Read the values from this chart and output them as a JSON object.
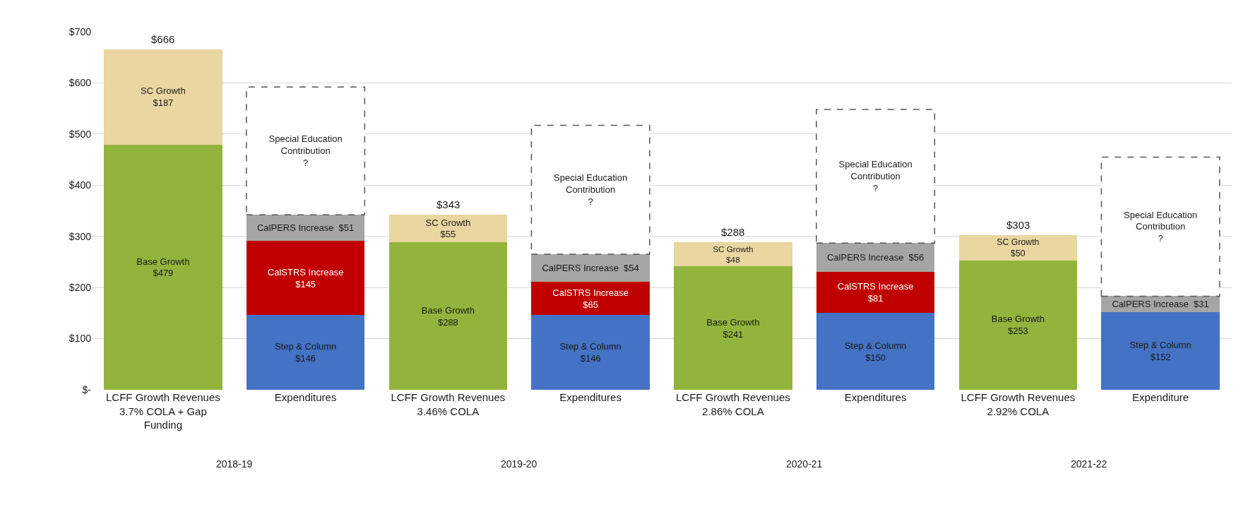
{
  "chart_data": {
    "type": "bar",
    "stacked": true,
    "categories": [
      "LCFF Growth Revenues\n3.7% COLA + Gap\nFunding",
      "Expenditures",
      "LCFF Growth Revenues\n3.46% COLA",
      "Expenditures",
      "LCFF Growth Revenues\n2.86% COLA",
      "Expenditures",
      "LCFF Growth Revenues\n2.92% COLA",
      "Expenditure"
    ],
    "series": [
      {
        "color": "#92b43c",
        "values": [
          479,
          null,
          288,
          null,
          241,
          null,
          253,
          null
        ],
        "value_labels": [
          "Base Growth\n$479",
          null,
          "Base Growth\n$288",
          null,
          "Base Growth\n$241",
          null,
          "Base Growth\n$253",
          null
        ]
      },
      {
        "color": "#e9d6a0",
        "values": [
          187,
          null,
          55,
          null,
          48,
          null,
          50,
          null
        ],
        "value_labels": [
          "SC Growth\n$187",
          null,
          "SC Growth\n$55",
          null,
          "SC Growth\n$48",
          null,
          "SC Growth\n$50",
          null
        ]
      },
      {
        "color": "#4472c4",
        "values": [
          null,
          146,
          null,
          146,
          null,
          150,
          null,
          152
        ],
        "value_labels": [
          null,
          "Step & Column\n$146",
          null,
          "Step & Column\n$146",
          null,
          "Step & Column\n$150",
          null,
          "Step & Column\n$152"
        ]
      },
      {
        "color": "#c00000",
        "values": [
          null,
          145,
          null,
          65,
          null,
          81,
          null,
          null
        ],
        "value_labels": [
          null,
          "CalSTRS Increase\n$145",
          null,
          "CalSTRS Increase\n$65",
          null,
          "CalSTRS Increase\n$81",
          null,
          null
        ]
      },
      {
        "color": "#a5a5a5",
        "values": [
          null,
          51,
          null,
          54,
          null,
          56,
          null,
          31
        ],
        "value_labels": [
          null,
          "CalPERS Increase  $51",
          null,
          "CalPERS Increase  $54",
          null,
          "CalPERS Increase  $56",
          null,
          "CalPERS Increase  $31"
        ]
      },
      {
        "color": "#ffffff",
        "line_style": "dashed",
        "values": [
          null,
          250,
          null,
          252,
          null,
          261,
          null,
          272
        ],
        "value_labels": [
          null,
          "Special Education\nContribution\n?",
          null,
          "Special Education\nContribution\n?",
          null,
          "Special Education\nContribution\n?",
          null,
          "Special Education\nContribution\n?"
        ]
      }
    ],
    "totals": [
      "$666",
      null,
      "$343",
      null,
      "$288",
      null,
      "$303",
      null
    ],
    "annotations": [
      "2018-19",
      "2019-20",
      "2020-21",
      "2021-22"
    ],
    "ylim": [
      0,
      700
    ],
    "yticks": [
      {
        "value": 0,
        "label": "$-"
      },
      {
        "value": 100,
        "label": "$100"
      },
      {
        "value": 200,
        "label": "$200"
      },
      {
        "value": 300,
        "label": "$300"
      },
      {
        "value": 400,
        "label": "$400"
      },
      {
        "value": 500,
        "label": "$500"
      },
      {
        "value": 600,
        "label": "$600"
      },
      {
        "value": 700,
        "label": "$700"
      }
    ],
    "grid": "y"
  }
}
